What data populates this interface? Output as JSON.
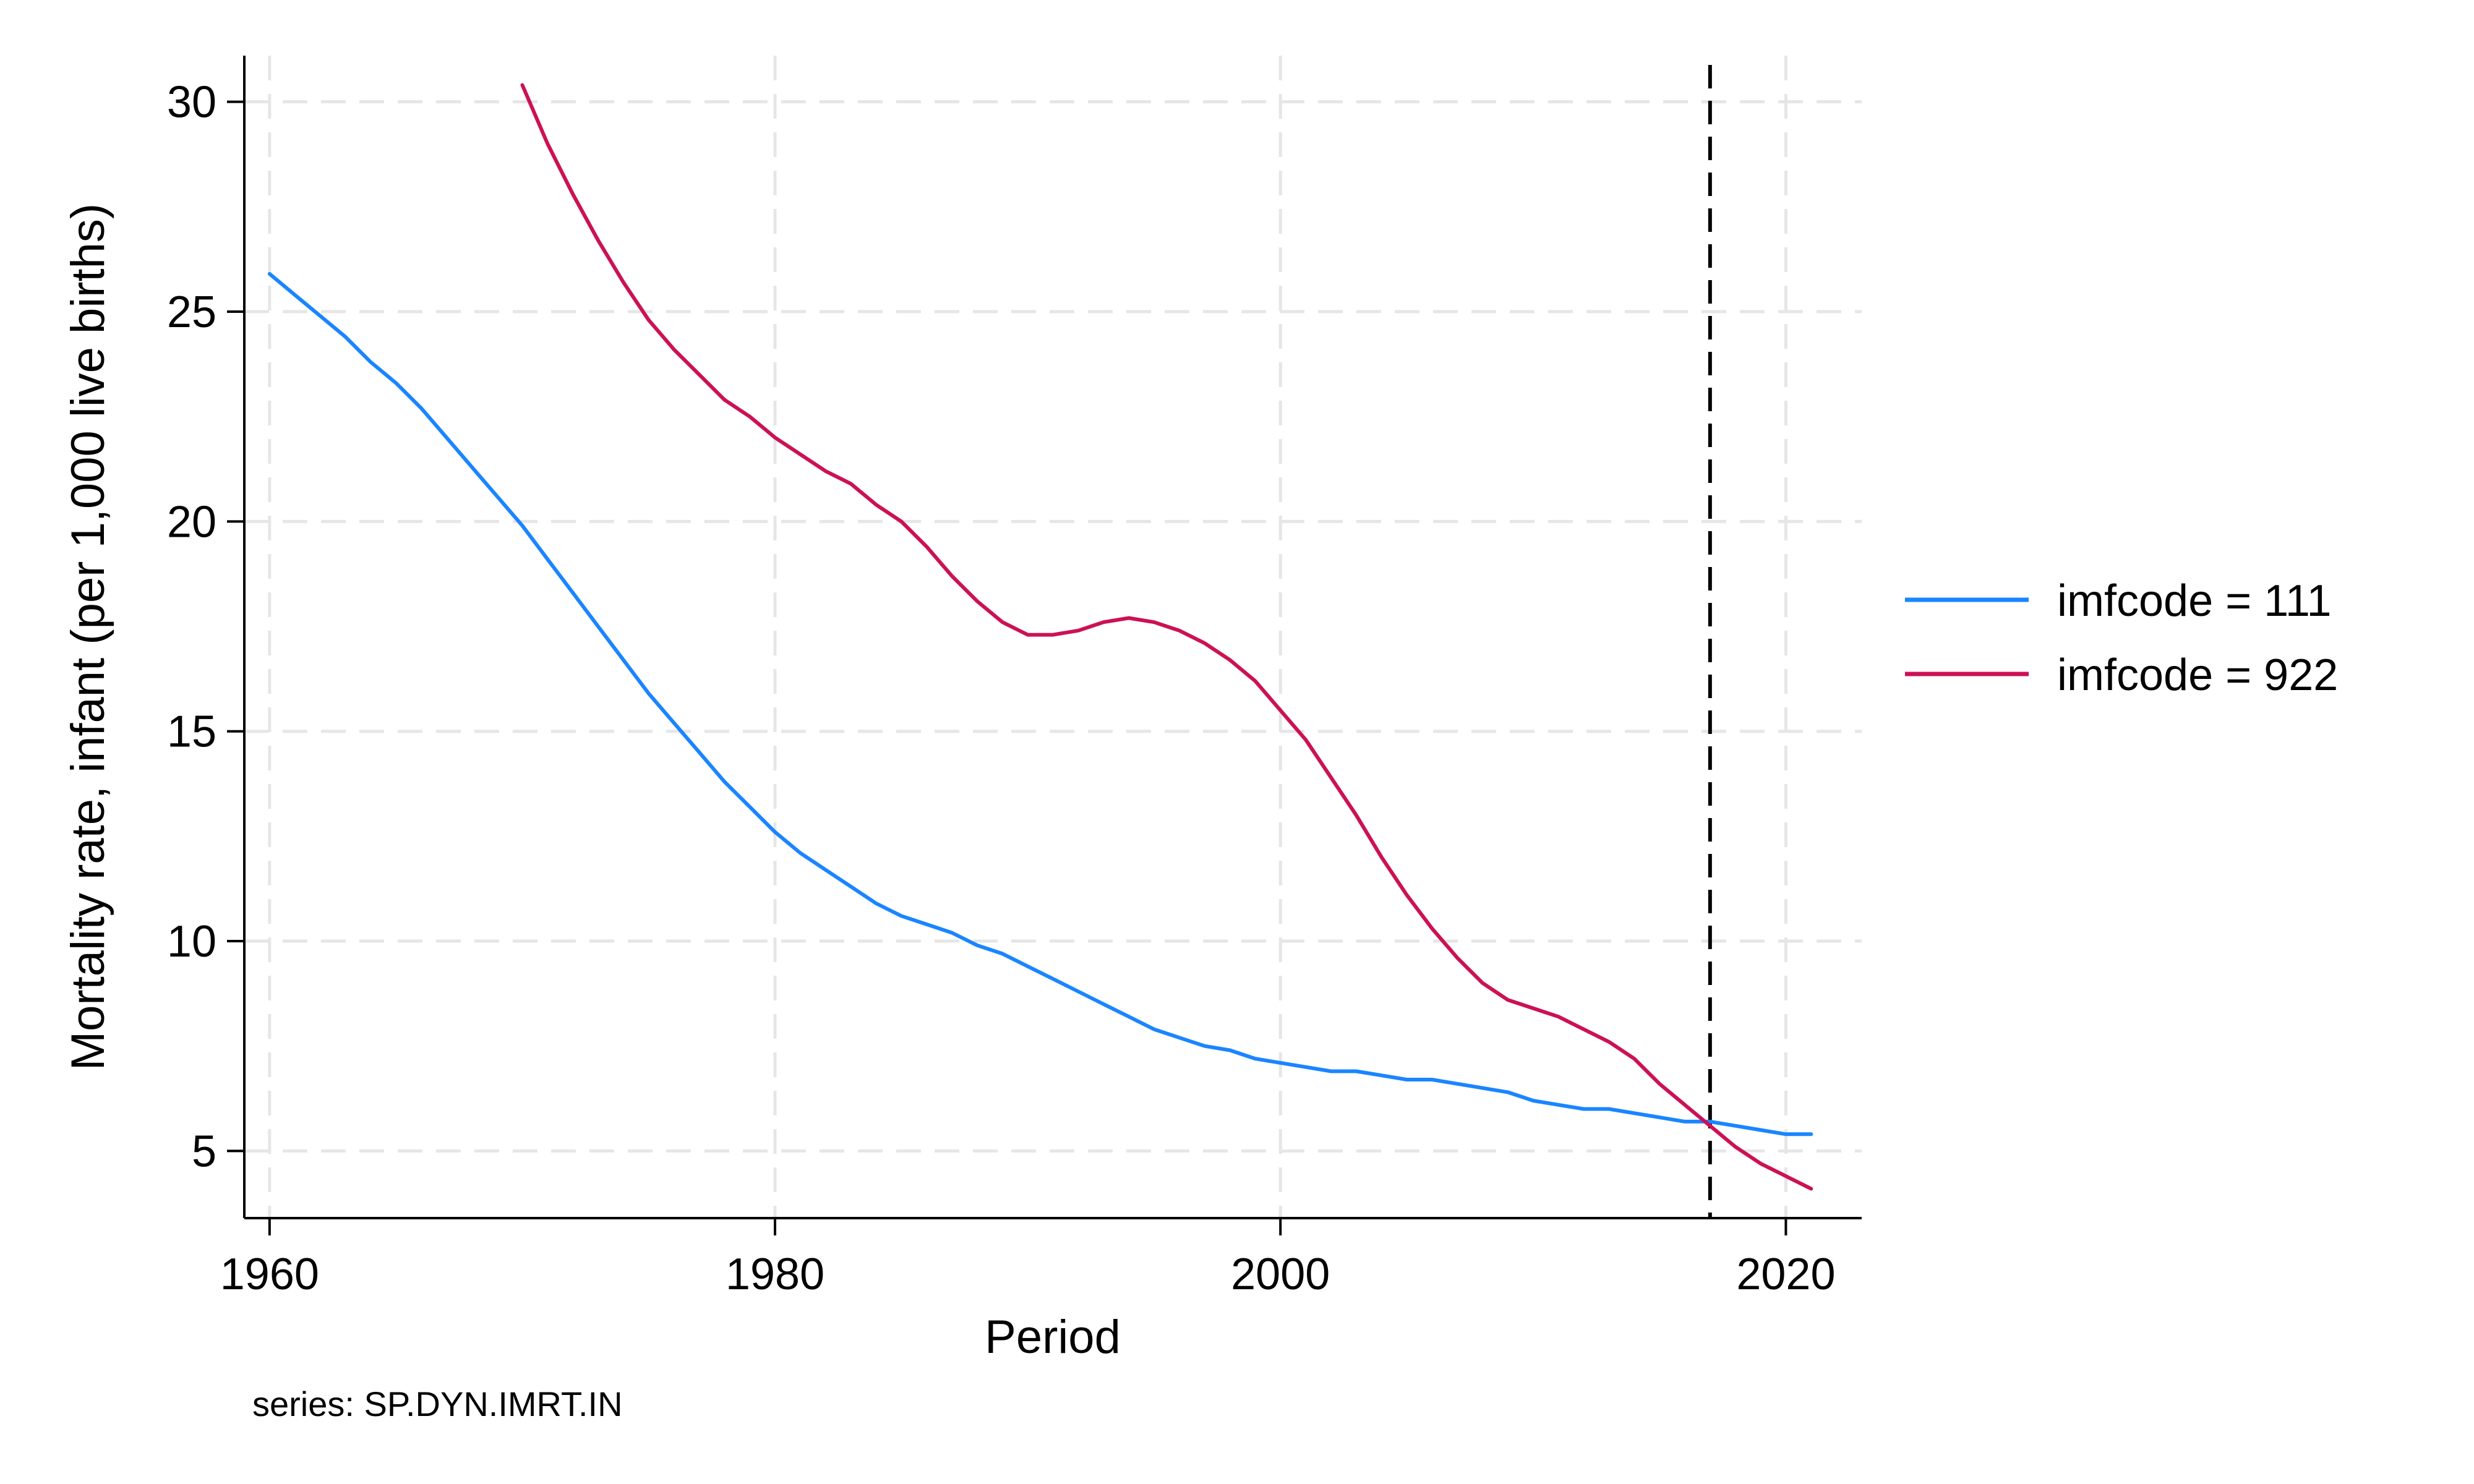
{
  "chart_data": {
    "type": "line",
    "xlabel": "Period",
    "ylabel": "Mortality rate, infant (per 1,000 live births)",
    "xlim": [
      1959,
      2023
    ],
    "ylim": [
      3.4,
      31.1
    ],
    "xticks": [
      1960,
      1980,
      2000,
      2020
    ],
    "yticks": [
      5,
      10,
      15,
      20,
      25,
      30
    ],
    "grid": true,
    "legend_position": "right",
    "note": "series: SP.DYN.IMRT.IN",
    "reference_line": {
      "x": 2017,
      "style": "dashed",
      "color": "#000000"
    },
    "series": [
      {
        "name": "imfcode = 111",
        "color": "#1a85ff",
        "x": [
          1960,
          1961,
          1962,
          1963,
          1964,
          1965,
          1966,
          1967,
          1968,
          1969,
          1970,
          1971,
          1972,
          1973,
          1974,
          1975,
          1976,
          1977,
          1978,
          1979,
          1980,
          1981,
          1982,
          1983,
          1984,
          1985,
          1986,
          1987,
          1988,
          1989,
          1990,
          1991,
          1992,
          1993,
          1994,
          1995,
          1996,
          1997,
          1998,
          1999,
          2000,
          2001,
          2002,
          2003,
          2004,
          2005,
          2006,
          2007,
          2008,
          2009,
          2010,
          2011,
          2012,
          2013,
          2014,
          2015,
          2016,
          2017,
          2018,
          2019,
          2020,
          2021
        ],
        "y": [
          25.9,
          25.4,
          24.9,
          24.4,
          23.8,
          23.3,
          22.7,
          22.0,
          21.3,
          20.6,
          19.9,
          19.1,
          18.3,
          17.5,
          16.7,
          15.9,
          15.2,
          14.5,
          13.8,
          13.2,
          12.6,
          12.1,
          11.7,
          11.3,
          10.9,
          10.6,
          10.4,
          10.2,
          9.9,
          9.7,
          9.4,
          9.1,
          8.8,
          8.5,
          8.2,
          7.9,
          7.7,
          7.5,
          7.4,
          7.2,
          7.1,
          7.0,
          6.9,
          6.9,
          6.8,
          6.7,
          6.7,
          6.6,
          6.5,
          6.4,
          6.2,
          6.1,
          6.0,
          6.0,
          5.9,
          5.8,
          5.7,
          5.7,
          5.6,
          5.5,
          5.4,
          5.4
        ]
      },
      {
        "name": "imfcode = 922",
        "color": "#cc1155",
        "x": [
          1970,
          1971,
          1972,
          1973,
          1974,
          1975,
          1976,
          1977,
          1978,
          1979,
          1980,
          1981,
          1982,
          1983,
          1984,
          1985,
          1986,
          1987,
          1988,
          1989,
          1990,
          1991,
          1992,
          1993,
          1994,
          1995,
          1996,
          1997,
          1998,
          1999,
          2000,
          2001,
          2002,
          2003,
          2004,
          2005,
          2006,
          2007,
          2008,
          2009,
          2010,
          2011,
          2012,
          2013,
          2014,
          2015,
          2016,
          2017,
          2018,
          2019,
          2020,
          2021
        ],
        "y": [
          30.4,
          29.0,
          27.8,
          26.7,
          25.7,
          24.8,
          24.1,
          23.5,
          22.9,
          22.5,
          22.0,
          21.6,
          21.2,
          20.9,
          20.4,
          20.0,
          19.4,
          18.7,
          18.1,
          17.6,
          17.3,
          17.3,
          17.4,
          17.6,
          17.7,
          17.6,
          17.4,
          17.1,
          16.7,
          16.2,
          15.5,
          14.8,
          13.9,
          13.0,
          12.0,
          11.1,
          10.3,
          9.6,
          9.0,
          8.6,
          8.4,
          8.2,
          7.9,
          7.6,
          7.2,
          6.6,
          6.1,
          5.6,
          5.1,
          4.7,
          4.4,
          4.1
        ]
      }
    ]
  }
}
